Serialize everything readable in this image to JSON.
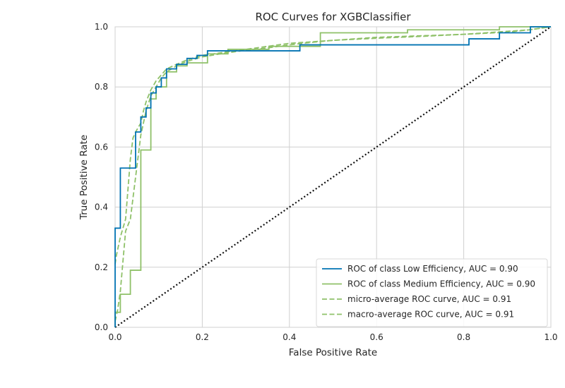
{
  "chart_data": {
    "type": "line",
    "title": "ROC Curves for XGBClassifier",
    "xlabel": "False Positive Rate",
    "ylabel": "True Positive Rate",
    "xlim": [
      0,
      1
    ],
    "ylim": [
      0,
      1
    ],
    "x_ticks": [
      "0.0",
      "0.2",
      "0.4",
      "0.6",
      "0.8",
      "1.0"
    ],
    "y_ticks": [
      "0.0",
      "0.2",
      "0.4",
      "0.6",
      "0.8",
      "1.0"
    ],
    "grid": true,
    "legend_position": "lower-right",
    "series": [
      {
        "name": "ROC of class Low Efficiency, AUC = 0.90",
        "color": "#0072b2",
        "style": "solid",
        "x": [
          0,
          0,
          0.012,
          0.012,
          0.047,
          0.047,
          0.059,
          0.059,
          0.071,
          0.071,
          0.082,
          0.082,
          0.094,
          0.094,
          0.106,
          0.106,
          0.118,
          0.118,
          0.141,
          0.141,
          0.165,
          0.165,
          0.188,
          0.188,
          0.212,
          0.212,
          0.424,
          0.424,
          0.812,
          0.812,
          0.882,
          0.882,
          0.953,
          0.953,
          1.0
        ],
        "y": [
          0,
          0.33,
          0.33,
          0.53,
          0.53,
          0.65,
          0.65,
          0.7,
          0.7,
          0.73,
          0.73,
          0.78,
          0.78,
          0.8,
          0.8,
          0.83,
          0.83,
          0.86,
          0.86,
          0.875,
          0.875,
          0.895,
          0.895,
          0.905,
          0.905,
          0.92,
          0.92,
          0.94,
          0.94,
          0.96,
          0.96,
          0.98,
          0.98,
          1.0,
          1.0
        ]
      },
      {
        "name": "ROC of class Medium Efficiency, AUC = 0.90",
        "color": "#8fc169",
        "style": "solid",
        "x": [
          0,
          0,
          0.012,
          0.012,
          0.035,
          0.035,
          0.059,
          0.059,
          0.082,
          0.082,
          0.094,
          0.094,
          0.118,
          0.118,
          0.141,
          0.141,
          0.165,
          0.165,
          0.212,
          0.212,
          0.259,
          0.259,
          0.353,
          0.353,
          0.471,
          0.471,
          0.671,
          0.671,
          0.882,
          0.882,
          1.0
        ],
        "y": [
          0,
          0.05,
          0.05,
          0.11,
          0.11,
          0.19,
          0.19,
          0.59,
          0.59,
          0.76,
          0.76,
          0.8,
          0.8,
          0.85,
          0.85,
          0.87,
          0.87,
          0.88,
          0.88,
          0.91,
          0.91,
          0.925,
          0.925,
          0.935,
          0.935,
          0.98,
          0.98,
          0.99,
          0.99,
          1.0,
          1.0
        ]
      },
      {
        "name": "micro-average ROC curve, AUC = 0.91",
        "color": "#8fc169",
        "style": "dashed",
        "x": [
          0,
          0.003,
          0.012,
          0.024,
          0.029,
          0.035,
          0.041,
          0.047,
          0.059,
          0.065,
          0.071,
          0.082,
          0.094,
          0.106,
          0.118,
          0.141,
          0.165,
          0.2,
          0.25,
          0.3,
          0.35,
          0.4,
          0.45,
          0.5,
          0.6,
          0.7,
          0.8,
          0.9,
          0.95,
          1.0
        ],
        "y": [
          0.21,
          0.24,
          0.3,
          0.36,
          0.45,
          0.56,
          0.63,
          0.65,
          0.68,
          0.72,
          0.75,
          0.79,
          0.82,
          0.84,
          0.86,
          0.875,
          0.89,
          0.905,
          0.915,
          0.925,
          0.935,
          0.945,
          0.95,
          0.955,
          0.965,
          0.97,
          0.975,
          0.985,
          0.99,
          1.0
        ]
      },
      {
        "name": "macro-average ROC curve, AUC = 0.91",
        "color": "#8fc169",
        "style": "dashed",
        "x": [
          0,
          0.006,
          0.012,
          0.024,
          0.035,
          0.047,
          0.059,
          0.071,
          0.082,
          0.094,
          0.106,
          0.118,
          0.141,
          0.165,
          0.2,
          0.25,
          0.3,
          0.35,
          0.4,
          0.45,
          0.5,
          0.6,
          0.7,
          0.8,
          0.9,
          0.95,
          1.0
        ],
        "y": [
          0.02,
          0.06,
          0.12,
          0.32,
          0.36,
          0.5,
          0.64,
          0.72,
          0.77,
          0.8,
          0.83,
          0.85,
          0.87,
          0.885,
          0.9,
          0.912,
          0.922,
          0.93,
          0.94,
          0.948,
          0.955,
          0.962,
          0.968,
          0.975,
          0.982,
          0.99,
          1.0
        ]
      },
      {
        "name": "",
        "color": "#111111",
        "style": "dotted",
        "x": [
          0,
          1
        ],
        "y": [
          0,
          1
        ]
      }
    ]
  }
}
